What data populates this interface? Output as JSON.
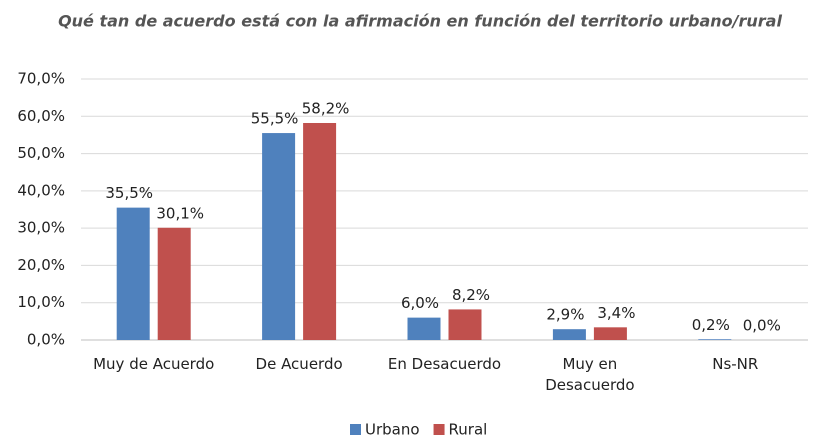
{
  "chart_data": {
    "type": "bar",
    "title": "Qué tan de acuerdo está con la afirmación en función del territorio urbano/rural",
    "categories": [
      "Muy de Acuerdo",
      "De Acuerdo",
      "En Desacuerdo",
      "Muy en\nDesacuerdo",
      "Ns-NR"
    ],
    "series": [
      {
        "name": "Urbano",
        "color": "#4f81bd",
        "values": [
          35.5,
          55.5,
          6.0,
          2.9,
          0.2
        ],
        "value_labels": [
          "35,5%",
          "55,5%",
          "6,0%",
          "2,9%",
          "0,2%"
        ]
      },
      {
        "name": "Rural",
        "color": "#c0504d",
        "values": [
          30.1,
          58.2,
          8.2,
          3.4,
          0.0
        ],
        "value_labels": [
          "30,1%",
          "58,2%",
          "8,2%",
          "3,4%",
          "0,0%"
        ]
      }
    ],
    "ylim": [
      0,
      70
    ],
    "yticks": [
      {
        "value": 0,
        "label": "0,0%"
      },
      {
        "value": 10,
        "label": "10,0%"
      },
      {
        "value": 20,
        "label": "20,0%"
      },
      {
        "value": 30,
        "label": "30,0%"
      },
      {
        "value": 40,
        "label": "40,0%"
      },
      {
        "value": 50,
        "label": "50,0%"
      },
      {
        "value": 60,
        "label": "60,0%"
      },
      {
        "value": 70,
        "label": "70,0%"
      }
    ],
    "grid": true,
    "legend": "bottom"
  }
}
